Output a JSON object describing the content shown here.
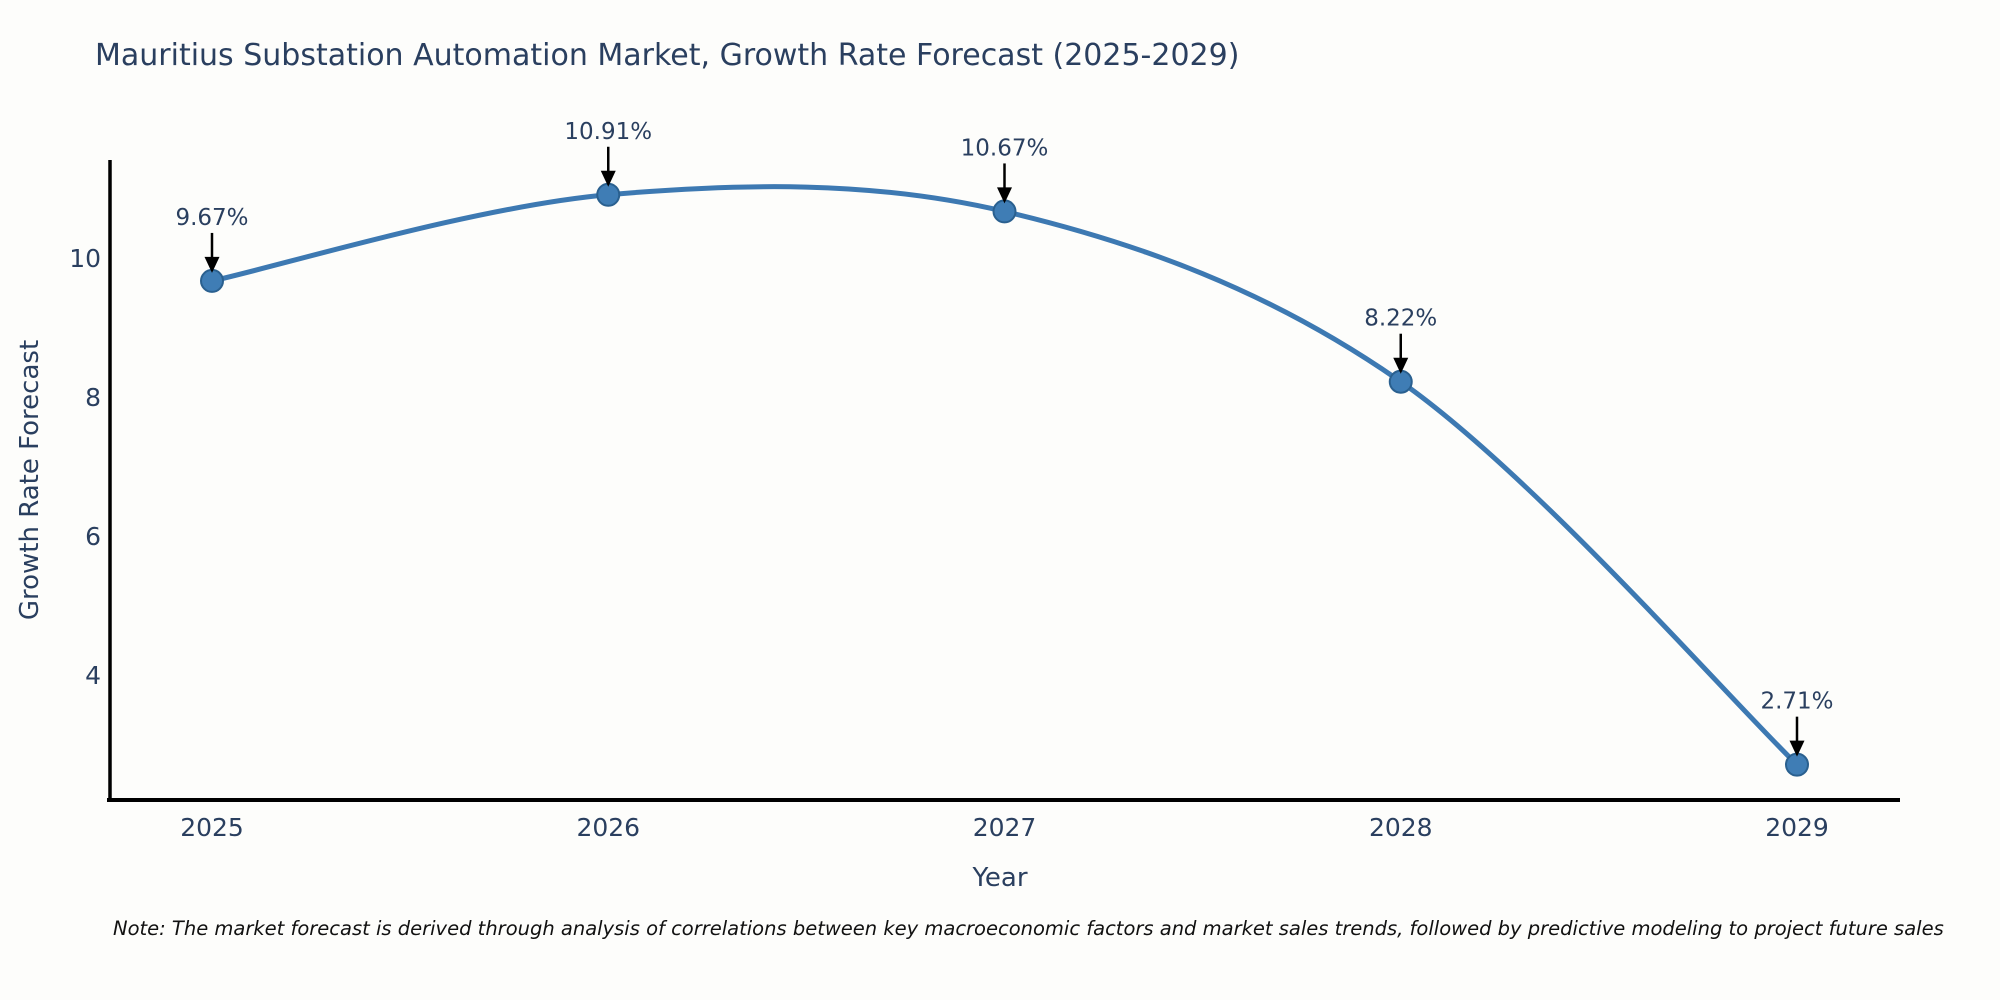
{
  "figure": {
    "note": "Note: The market forecast is derived through analysis of correlations between key macroeconomic factors and market sales trends, followed by predictive modeling to project future sales"
  },
  "chart_data": {
    "type": "line",
    "title": "Mauritius Substation Automation Market, Growth Rate Forecast (2025-2029)",
    "xlabel": "Year",
    "ylabel": "Growth Rate Forecast",
    "categories": [
      "2025",
      "2026",
      "2027",
      "2028",
      "2029"
    ],
    "values": [
      9.67,
      10.91,
      10.67,
      8.22,
      2.71
    ],
    "point_labels": [
      "9.67%",
      "10.91%",
      "10.67%",
      "8.22%",
      "2.71%"
    ],
    "yticks": [
      10,
      8,
      6,
      4
    ],
    "ylim": [
      2.2,
      11.4
    ],
    "line_shape": "spline",
    "markers": true,
    "grid": false,
    "legend_position": "none",
    "colors": {
      "line": "#3d79b2",
      "marker_fill": "#3f7db5",
      "marker_edge": "#2a608f",
      "axis": "#000000",
      "text": "#2a3f5f",
      "annotation_arrow": "#000000",
      "note_text": "#111111"
    }
  }
}
